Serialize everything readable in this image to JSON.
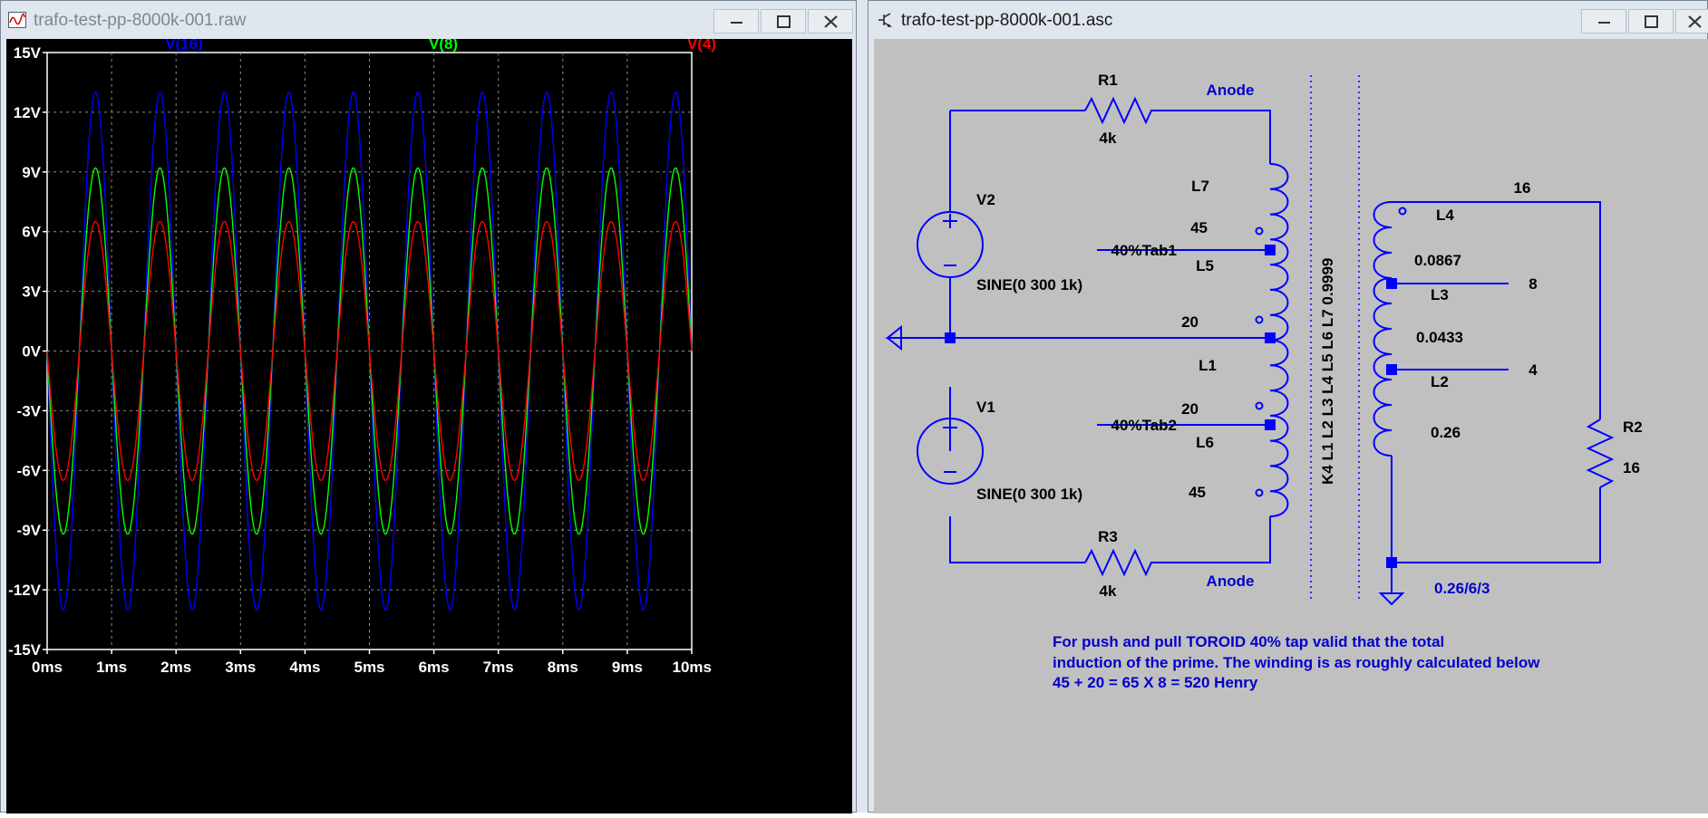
{
  "plot_window": {
    "title": "trafo-test-pp-8000k-001.raw",
    "icon": "waveform-icon",
    "controls": [
      "minimize-icon",
      "maximize-icon",
      "close-icon"
    ],
    "traces": [
      {
        "name": "V(16)",
        "color": "#0000ff",
        "amplitude": 13.0
      },
      {
        "name": "V(8)",
        "color": "#00ff00",
        "amplitude": 9.2
      },
      {
        "name": "V(4)",
        "color": "#ff0000",
        "amplitude": 6.5
      }
    ],
    "y_ticks": [
      "15V",
      "12V",
      "9V",
      "6V",
      "3V",
      "0V",
      "-3V",
      "-6V",
      "-9V",
      "-12V",
      "-15V"
    ],
    "x_ticks": [
      "0ms",
      "1ms",
      "2ms",
      "3ms",
      "4ms",
      "5ms",
      "6ms",
      "7ms",
      "8ms",
      "9ms",
      "10ms"
    ],
    "background": "#000000",
    "grid_color": "#8c8c8c"
  },
  "chart_data": {
    "type": "line",
    "title": "",
    "xlabel": "",
    "ylabel": "",
    "xlim": [
      0,
      10
    ],
    "ylim": [
      -15,
      15
    ],
    "x_unit": "ms",
    "grid": true,
    "signal": "sine, 1 kHz, inverted phase (starts downward at 0 ms)",
    "series": [
      {
        "name": "V(16)",
        "amplitude": 13.0,
        "frequency_khz": 1,
        "phase": "-sin"
      },
      {
        "name": "V(8)",
        "amplitude": 9.2,
        "frequency_khz": 1,
        "phase": "-sin"
      },
      {
        "name": "V(4)",
        "amplitude": 6.5,
        "frequency_khz": 1,
        "phase": "-sin"
      }
    ]
  },
  "schematic_window": {
    "title": "trafo-test-pp-8000k-001.asc",
    "icon": "schematic-icon",
    "controls": [
      "minimize-icon",
      "maximize-icon",
      "close-icon"
    ],
    "background": "#c0c0c0",
    "wire_color": "#0000ff",
    "label_color": "#000000",
    "net_color": "#0000cc",
    "labels": {
      "r1": "R1",
      "r1_val": "4k",
      "r3": "R3",
      "r3_val": "4k",
      "r2": "R2",
      "r2_val": "16",
      "anode_top": "Anode",
      "anode_bottom": "Anode",
      "v2": "V2",
      "v2_val": "SINE(0 300 1k)",
      "v1": "V1",
      "v1_val": "SINE(0 300 1k)",
      "l7": "L7",
      "l7_val": "45",
      "l5": "L5",
      "l5_val": "20",
      "l1": "L1",
      "l6": "L6",
      "l6_val_top": "20",
      "l6_val": "45",
      "tab1": "40%Tab1",
      "tab2": "40%Tab2",
      "coupling": "K4 L1 L2 L3 L4 L5 L6 L7 0.9999",
      "l4": "L4",
      "l4_val": "0.0867",
      "l3": "L3",
      "l3_val": "0.0433",
      "l2": "L2",
      "l2_val": "0.26",
      "net16": "16",
      "net8": "8",
      "net4": "4",
      "secondary_note": "0.26/6/3"
    },
    "comment_lines": [
      "For push and pull TOROID 40% tap valid that the total",
      "induction of the prime. The winding is as roughly calculated below",
      "45 + 20 = 65 X 8 = 520 Henry"
    ]
  }
}
